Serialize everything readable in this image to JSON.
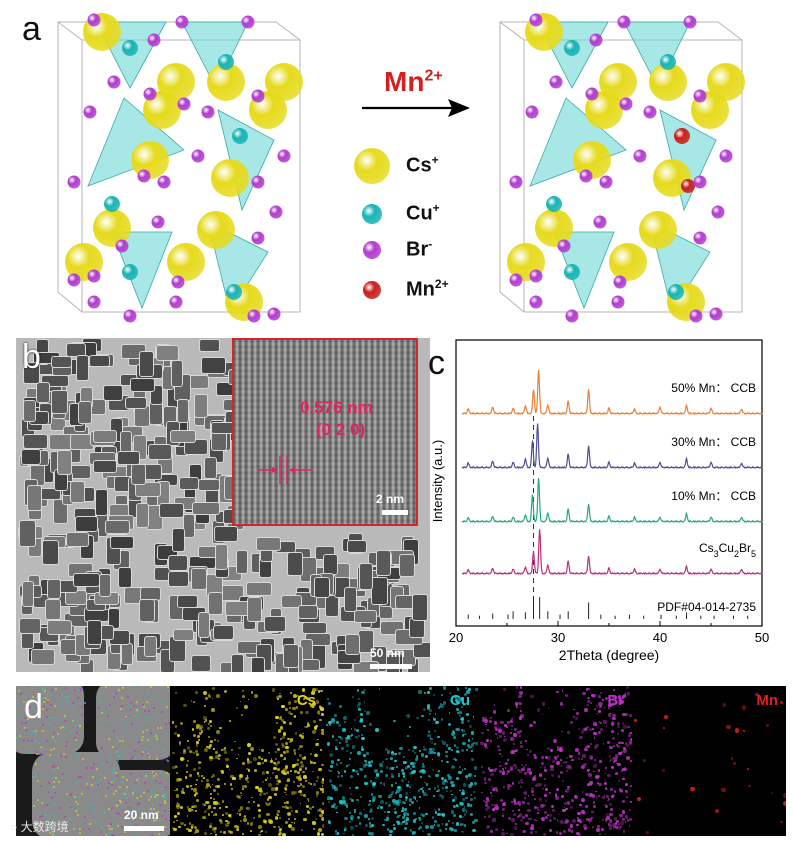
{
  "panel_a": {
    "letter": "a",
    "arrow_label_base": "Mn",
    "arrow_label_charge": "2+",
    "legend": [
      {
        "name": "Cs",
        "charge": "+",
        "color": "#e6da1c"
      },
      {
        "name": "Cu",
        "charge": "+",
        "color": "#18b4b4"
      },
      {
        "name": "Br",
        "charge": "-",
        "color": "#b23ccf"
      },
      {
        "name": "Mn",
        "charge": "2+",
        "color": "#c8201c"
      }
    ]
  },
  "panel_b": {
    "letter": "b",
    "inset_spacing": "0.576 nm",
    "inset_plane": "(0 2 0)",
    "inset_scale": "2 nm",
    "main_scale": "50 nm"
  },
  "panel_c": {
    "letter": "c",
    "chart_data": {
      "type": "line",
      "xlabel": "2Theta (degree)",
      "ylabel": "Intensity (a.u.)",
      "xlim": [
        20,
        50
      ],
      "xticks": [
        "20",
        "30",
        "40",
        "50"
      ],
      "dashed_reference_x": 27.6,
      "series": [
        {
          "name": "50% Mn： CCB",
          "color": "#e8803a",
          "peaks": [
            [
              21.2,
              0.1
            ],
            [
              23.6,
              0.15
            ],
            [
              25.6,
              0.12
            ],
            [
              26.8,
              0.18
            ],
            [
              27.6,
              0.55
            ],
            [
              28.1,
              1.0
            ],
            [
              29.0,
              0.2
            ],
            [
              31.0,
              0.28
            ],
            [
              33.0,
              0.55
            ],
            [
              35.0,
              0.12
            ],
            [
              37.5,
              0.1
            ],
            [
              40.0,
              0.15
            ],
            [
              42.6,
              0.18
            ],
            [
              45.0,
              0.12
            ],
            [
              48.0,
              0.1
            ]
          ]
        },
        {
          "name": "30% Mn： CCB",
          "color": "#4f4f93",
          "peaks": [
            [
              21.2,
              0.1
            ],
            [
              23.6,
              0.15
            ],
            [
              25.6,
              0.12
            ],
            [
              26.8,
              0.2
            ],
            [
              27.5,
              0.6
            ],
            [
              28.0,
              1.0
            ],
            [
              29.0,
              0.22
            ],
            [
              31.0,
              0.3
            ],
            [
              33.0,
              0.5
            ],
            [
              35.0,
              0.12
            ],
            [
              37.5,
              0.1
            ],
            [
              40.0,
              0.12
            ],
            [
              42.6,
              0.2
            ],
            [
              45.0,
              0.12
            ],
            [
              48.0,
              0.1
            ]
          ]
        },
        {
          "name": "10% Mn： CCB",
          "color": "#2aa87c",
          "peaks": [
            [
              21.2,
              0.08
            ],
            [
              23.6,
              0.12
            ],
            [
              25.6,
              0.1
            ],
            [
              26.8,
              0.15
            ],
            [
              27.5,
              0.6
            ],
            [
              28.1,
              1.0
            ],
            [
              29.0,
              0.2
            ],
            [
              31.0,
              0.28
            ],
            [
              33.0,
              0.4
            ],
            [
              35.0,
              0.12
            ],
            [
              37.5,
              0.1
            ],
            [
              40.0,
              0.1
            ],
            [
              42.6,
              0.18
            ],
            [
              45.0,
              0.1
            ],
            [
              48.0,
              0.1
            ]
          ]
        },
        {
          "name": "Cs3Cu2Br5",
          "label_parts": [
            "Cs",
            "3",
            "Cu",
            "2",
            "Br",
            "5"
          ],
          "color": "#b8327a",
          "peaks": [
            [
              21.2,
              0.08
            ],
            [
              23.6,
              0.12
            ],
            [
              25.6,
              0.1
            ],
            [
              26.8,
              0.15
            ],
            [
              27.6,
              0.5
            ],
            [
              28.2,
              1.0
            ],
            [
              29.0,
              0.2
            ],
            [
              31.0,
              0.28
            ],
            [
              33.0,
              0.4
            ],
            [
              35.0,
              0.12
            ],
            [
              37.5,
              0.1
            ],
            [
              40.0,
              0.1
            ],
            [
              42.6,
              0.16
            ],
            [
              45.0,
              0.1
            ],
            [
              48.0,
              0.1
            ]
          ]
        }
      ],
      "reference": {
        "name": "PDF#04-014-2735",
        "lines": [
          [
            21.2,
            0.2
          ],
          [
            22.3,
            0.15
          ],
          [
            23.6,
            0.25
          ],
          [
            25.1,
            0.2
          ],
          [
            25.6,
            0.35
          ],
          [
            26.8,
            0.3
          ],
          [
            27.6,
            0.9
          ],
          [
            28.2,
            1.0
          ],
          [
            29.0,
            0.35
          ],
          [
            30.2,
            0.2
          ],
          [
            31.0,
            0.35
          ],
          [
            33.0,
            0.75
          ],
          [
            34.2,
            0.2
          ],
          [
            35.6,
            0.15
          ],
          [
            37.0,
            0.2
          ],
          [
            38.4,
            0.15
          ],
          [
            40.1,
            0.2
          ],
          [
            41.6,
            0.15
          ],
          [
            42.6,
            0.3
          ],
          [
            44.0,
            0.15
          ],
          [
            45.3,
            0.15
          ],
          [
            47.2,
            0.15
          ],
          [
            48.6,
            0.15
          ]
        ]
      }
    }
  },
  "panel_d": {
    "letter": "d",
    "scale": "20 nm",
    "channels": [
      {
        "name": "Cs",
        "color": "#e0d020"
      },
      {
        "name": "Cu",
        "color": "#20c4cc"
      },
      {
        "name": "Br",
        "color": "#c030c8"
      },
      {
        "name": "Mn",
        "color": "#e02020"
      }
    ]
  },
  "watermark": "大数跨境"
}
